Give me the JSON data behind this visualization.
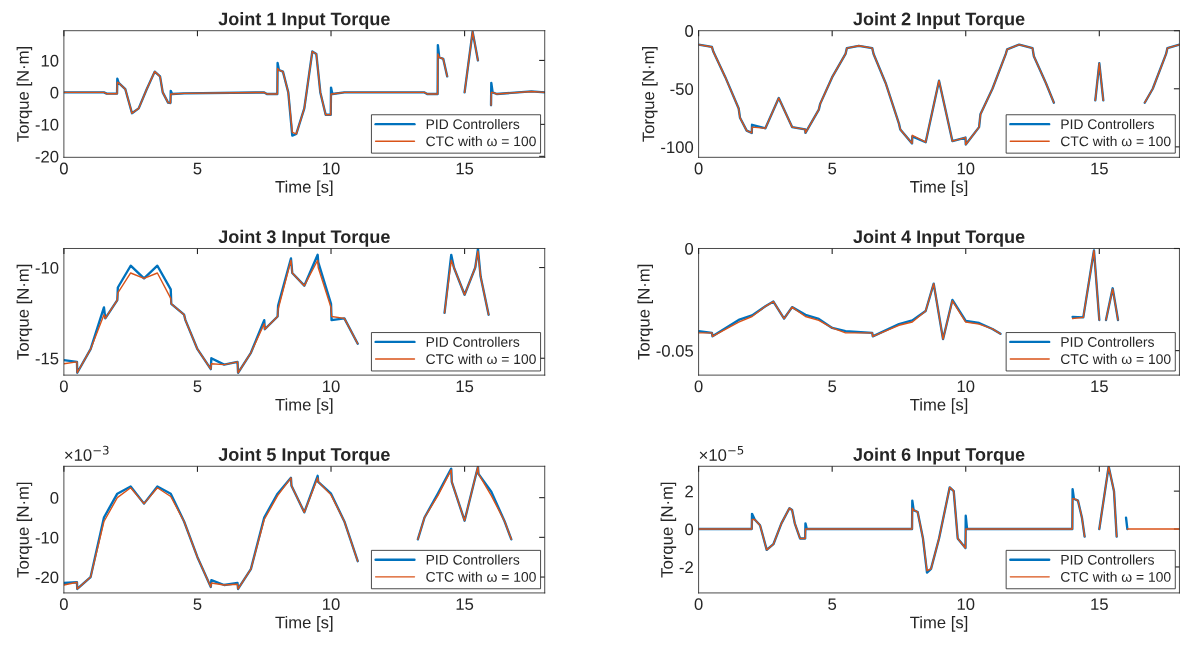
{
  "chart_data": [
    {
      "type": "line",
      "title": "Joint 1 Input Torque",
      "xlabel": "Time [s]",
      "ylabel": "Torque [N·m]",
      "xlim": [
        0,
        18
      ],
      "xticks": [
        0,
        5,
        10,
        15
      ],
      "ylim": [
        -20.3,
        19.3
      ],
      "yticks": [
        -20,
        -10,
        0,
        10
      ],
      "legend": "bottom right",
      "x": [
        0,
        1.5,
        1.6,
        1.99,
        2.0,
        2.05,
        2.3,
        2.55,
        2.8,
        3.1,
        3.4,
        3.6,
        3.7,
        3.9,
        3.99,
        4.0,
        4.05,
        4.5,
        7.5,
        7.6,
        7.99,
        8.0,
        8.05,
        8.2,
        8.4,
        8.55,
        8.7,
        9.0,
        9.3,
        9.45,
        9.6,
        9.8,
        9.99,
        10.0,
        10.05,
        10.5,
        13.5,
        13.6,
        13.99,
        14.0,
        14.05,
        14.2,
        14.35,
        14.5,
        14.6,
        14.75,
        15.0,
        15.3,
        15.5,
        15.65,
        15.85,
        15.99,
        16.0,
        16.05,
        16.2,
        17.5,
        18
      ],
      "series": [
        {
          "name": "PID Controllers",
          "color": "#0072bd",
          "values": [
            0,
            0,
            -0.4,
            -0.4,
            4.3,
            3.0,
            1,
            -6.5,
            -5,
            1,
            6.5,
            5,
            0,
            -3.2,
            -3.3,
            0.5,
            -0.5,
            -0.3,
            0,
            -0.5,
            -0.5,
            9.2,
            7,
            6.5,
            0,
            -13.5,
            -13,
            -5,
            12.8,
            12,
            0,
            -7,
            -7,
            1.5,
            -0.5,
            0,
            0,
            -0.5,
            -0.5,
            14.8,
            11,
            10.5,
            5,
            null,
            null,
            null,
            0,
            19,
            10,
            null,
            null,
            -4,
            3.0,
            0,
            -0.5,
            0.3,
            0
          ]
        },
        {
          "name": "CTC with ω = 100",
          "color": "#d95319",
          "values": [
            0,
            0,
            -0.4,
            -0.4,
            3.2,
            3.0,
            1,
            -6.5,
            -5,
            1,
            6.5,
            5,
            0,
            -3.2,
            -3.3,
            -0.5,
            -0.5,
            -0.3,
            0,
            -0.5,
            -0.5,
            7.5,
            7,
            6.5,
            0,
            -12.5,
            -13,
            -5,
            12.8,
            12,
            0,
            -7,
            -7,
            -0.5,
            -0.5,
            0,
            0,
            -0.5,
            -0.5,
            12,
            11,
            10.5,
            5,
            null,
            null,
            null,
            0,
            19,
            10,
            null,
            null,
            -4,
            0,
            0,
            -0.5,
            0.3,
            0
          ]
        }
      ]
    },
    {
      "type": "line",
      "title": "Joint 2 Input Torque",
      "xlabel": "Time [s]",
      "ylabel": "Torque [N·m]",
      "xlim": [
        0,
        18
      ],
      "xticks": [
        0,
        5,
        10,
        15
      ],
      "ylim": [
        -109,
        0
      ],
      "yticks": [
        -100,
        -50,
        0
      ],
      "legend": "bottom right",
      "x": [
        0,
        0.5,
        0.55,
        1.0,
        1.5,
        1.55,
        1.8,
        1.99,
        2.0,
        2.5,
        3.0,
        3.5,
        3.99,
        4.0,
        4.5,
        4.55,
        5.0,
        5.5,
        5.55,
        6.0,
        6.5,
        6.55,
        7.0,
        7.5,
        7.55,
        7.99,
        8.0,
        8.5,
        9.0,
        9.5,
        9.99,
        10.0,
        10.5,
        10.55,
        11.0,
        11.5,
        11.55,
        12.0,
        12.5,
        12.55,
        13.0,
        13.3,
        14.0,
        14.2,
        14.5,
        14.85,
        15.0,
        15.15,
        15.5,
        15.8,
        16.0,
        16.7,
        17.0,
        17.5,
        17.55,
        18
      ],
      "series": [
        {
          "name": "PID Controllers",
          "color": "#0072bd",
          "values": [
            -12,
            -14,
            -18,
            -40,
            -67,
            -75,
            -86,
            -88,
            -81,
            -84,
            -58,
            -83,
            -85,
            -88,
            -68,
            -63,
            -40,
            -20,
            -15,
            -13,
            -15,
            -20,
            -45,
            -80,
            -85,
            -97,
            -91,
            -96,
            -43,
            -95,
            -92,
            -98,
            -83,
            -72,
            -50,
            -20,
            -16,
            -12,
            -15,
            -22,
            -45,
            -62,
            null,
            null,
            null,
            -60,
            -28,
            -60,
            null,
            null,
            null,
            -62,
            -50,
            -20,
            -15,
            -12
          ]
        },
        {
          "name": "CTC with ω = 100",
          "color": "#d95319",
          "values": [
            -12,
            -14,
            -18,
            -40,
            -67,
            -75,
            -86,
            -88,
            -83,
            -84,
            -58,
            -83,
            -85,
            -88,
            -68,
            -63,
            -40,
            -20,
            -15,
            -13,
            -15,
            -20,
            -45,
            -80,
            -85,
            -97,
            -90,
            -96,
            -43,
            -95,
            -92,
            -98,
            -83,
            -72,
            -50,
            -20,
            -16,
            -12,
            -15,
            -22,
            -45,
            -62,
            null,
            null,
            null,
            -60,
            -28,
            -60,
            null,
            null,
            null,
            -62,
            -50,
            -20,
            -15,
            -12
          ]
        }
      ]
    },
    {
      "type": "line",
      "title": "Joint 3 Input Torque",
      "xlabel": "Time [s]",
      "ylabel": "Torque [N·m]",
      "xlim": [
        0,
        18
      ],
      "xticks": [
        0,
        5,
        10,
        15
      ],
      "ylim": [
        -15.93,
        -8.95
      ],
      "yticks": [
        -15,
        -10
      ],
      "legend": "bottom right",
      "x": [
        0,
        0.49,
        0.5,
        1.0,
        1.5,
        1.55,
        2.0,
        2.02,
        2.5,
        3.0,
        3.5,
        4.0,
        4.02,
        4.5,
        4.55,
        5.0,
        5.5,
        5.52,
        6.0,
        6.5,
        6.52,
        7.0,
        7.5,
        7.52,
        8.0,
        8.02,
        8.5,
        8.55,
        9.0,
        9.5,
        9.52,
        10.0,
        10.02,
        10.5,
        11.0,
        11.5,
        11.52,
        12.0,
        12.5,
        12.52,
        13.0,
        13.5,
        14.25,
        14.5,
        14.6,
        15.0,
        15.4,
        15.5,
        15.6,
        15.9
      ],
      "series": [
        {
          "name": "PID Controllers",
          "color": "#0072bd",
          "values": [
            -15.1,
            -15.2,
            -15.8,
            -14.5,
            -12.2,
            -12.8,
            -11.8,
            -11.1,
            -9.9,
            -10.6,
            -9.9,
            -11.2,
            -12.0,
            -12.6,
            -12.9,
            -14.5,
            -15.6,
            -15.0,
            -15.35,
            -15.2,
            -15.8,
            -14.7,
            -12.9,
            -13.4,
            -12.7,
            -12.1,
            -9.5,
            -10.3,
            -11.0,
            -9.3,
            -9.7,
            -12.0,
            -12.9,
            -12.8,
            -14.2,
            null,
            null,
            null,
            null,
            null,
            null,
            null,
            -12.5,
            -9.3,
            -10.0,
            -11.5,
            -10.0,
            -8.97,
            -10.5,
            -12.6
          ]
        },
        {
          "name": "CTC with ω = 100",
          "color": "#d95319",
          "values": [
            -15.3,
            -15.2,
            -15.8,
            -14.5,
            -12.6,
            -12.8,
            -11.8,
            -11.4,
            -10.3,
            -10.6,
            -10.3,
            -11.7,
            -12.0,
            -12.6,
            -12.9,
            -14.5,
            -15.6,
            -15.3,
            -15.35,
            -15.2,
            -15.8,
            -14.7,
            -13.1,
            -13.4,
            -12.7,
            -12.3,
            -9.6,
            -10.3,
            -11.0,
            -9.6,
            -10.0,
            -12.2,
            -12.7,
            -12.8,
            -14.2,
            null,
            null,
            null,
            null,
            null,
            null,
            null,
            -12.5,
            -9.6,
            -10.0,
            -11.5,
            -10.0,
            -9.1,
            -10.5,
            -12.6
          ]
        }
      ]
    },
    {
      "type": "line",
      "title": "Joint 4 Input Torque",
      "xlabel": "Time [s]",
      "ylabel": "Torque [N·m]",
      "xlim": [
        0,
        18
      ],
      "xticks": [
        0,
        5,
        10,
        15
      ],
      "ylim": [
        -0.062,
        0
      ],
      "yticks": [
        -0.05,
        0
      ],
      "legend": "bottom right",
      "x": [
        0,
        0.5,
        0.52,
        1.5,
        2.0,
        2.5,
        2.8,
        3.2,
        3.5,
        4.0,
        4.5,
        5.0,
        5.5,
        6.5,
        6.52,
        7.5,
        8.0,
        8.5,
        8.8,
        9.15,
        9.5,
        10.0,
        10.5,
        11.0,
        11.3,
        12.5,
        13.9,
        14.0,
        14.4,
        14.8,
        15.0,
        15.1,
        15.25,
        15.5,
        15.7
      ],
      "series": [
        {
          "name": "PID Controllers",
          "color": "#0072bd",
          "values": [
            -0.0405,
            -0.0413,
            -0.043,
            -0.035,
            -0.0328,
            -0.0283,
            -0.026,
            -0.0343,
            -0.0287,
            -0.0325,
            -0.0345,
            -0.0389,
            -0.0405,
            -0.0413,
            -0.043,
            -0.037,
            -0.0352,
            -0.0306,
            -0.0172,
            -0.0444,
            -0.0252,
            -0.0355,
            -0.0365,
            -0.0394,
            -0.0418,
            null,
            null,
            -0.0335,
            -0.0337,
            -0.0009,
            -0.035,
            null,
            -0.035,
            -0.0195,
            -0.035
          ]
        },
        {
          "name": "CTC with ω = 100",
          "color": "#d95319",
          "values": [
            -0.0413,
            -0.0413,
            -0.043,
            -0.036,
            -0.0333,
            -0.0283,
            -0.026,
            -0.0343,
            -0.0287,
            -0.0333,
            -0.0352,
            -0.0389,
            -0.0413,
            -0.0413,
            -0.043,
            -0.0376,
            -0.036,
            -0.0306,
            -0.0172,
            -0.0444,
            -0.0256,
            -0.036,
            -0.037,
            -0.0394,
            -0.0418,
            null,
            null,
            -0.0343,
            -0.0337,
            -0.0009,
            -0.035,
            null,
            -0.035,
            -0.0198,
            -0.035
          ]
        }
      ]
    },
    {
      "type": "line",
      "title": "Joint 5 Input Torque",
      "xlabel": "Time [s]",
      "ylabel": "Torque [N·m]",
      "xlim": [
        0,
        18
      ],
      "xticks": [
        0,
        5,
        10,
        15
      ],
      "ylim": [
        -24,
        7.9
      ],
      "yticks": [
        -20,
        -10,
        0
      ],
      "legend": "bottom right",
      "annotations": [
        "×10$^{−3}$"
      ],
      "x": [
        0,
        0.49,
        0.5,
        1.0,
        1.5,
        2.0,
        2.5,
        3.0,
        3.5,
        4.0,
        4.5,
        5.0,
        5.5,
        5.52,
        6.0,
        6.5,
        6.52,
        7.0,
        7.5,
        8.0,
        8.5,
        8.52,
        9.0,
        9.5,
        9.52,
        10.0,
        10.5,
        11.0,
        11.5,
        11.52,
        12.0,
        12.5,
        12.52,
        13.25,
        13.5,
        14.0,
        14.5,
        14.52,
        15.0,
        15.5,
        15.52,
        16.0,
        16.5,
        16.75
      ],
      "series": [
        {
          "name": "PID Controllers",
          "color": "#0072bd",
          "values": [
            -21.5,
            -21.3,
            -23,
            -20,
            -5,
            1,
            2.8,
            -1.5,
            2.8,
            1,
            -6,
            -15,
            -22.5,
            -20.8,
            -22,
            -21.5,
            -23,
            -18,
            -5,
            1,
            5,
            3,
            -3.7,
            5.5,
            4,
            1,
            -6,
            -16,
            null,
            null,
            null,
            null,
            null,
            -10.5,
            -5,
            1,
            7.3,
            4,
            -5.8,
            7.8,
            6,
            1.5,
            -6,
            -10.5
          ]
        },
        {
          "name": "CTC with ω = 100",
          "color": "#d95319",
          "values": [
            -22,
            -21.3,
            -23,
            -20,
            -6,
            0,
            2.5,
            -1.5,
            2.5,
            0.3,
            -6,
            -15,
            -22.5,
            -21.5,
            -22,
            -21.8,
            -23,
            -18,
            -5.5,
            0.5,
            5,
            3,
            -3.7,
            5,
            4,
            0.7,
            -6,
            -16,
            null,
            null,
            null,
            null,
            null,
            -10.5,
            -5,
            0.5,
            7,
            4,
            -5.8,
            7.8,
            6,
            0.5,
            -6,
            -10.5
          ]
        }
      ]
    },
    {
      "type": "line",
      "title": "Joint 6 Input Torque",
      "xlabel": "Time [s]",
      "ylabel": "Torque [N·m]",
      "xlim": [
        0,
        18
      ],
      "xticks": [
        0,
        5,
        10,
        15
      ],
      "ylim": [
        -3.37,
        3.31
      ],
      "yticks": [
        -2,
        0,
        2
      ],
      "legend": "bottom right",
      "annotations": [
        "×10$^{−5}$"
      ],
      "x": [
        0,
        1.99,
        2.0,
        2.1,
        2.3,
        2.55,
        2.8,
        3.1,
        3.4,
        3.5,
        3.6,
        3.8,
        3.99,
        4.0,
        4.05,
        7.99,
        8.0,
        8.05,
        8.2,
        8.4,
        8.55,
        8.7,
        9.0,
        9.4,
        9.55,
        9.7,
        9.99,
        10.0,
        10.05,
        13.99,
        14.0,
        14.05,
        14.2,
        14.35,
        14.45,
        14.6,
        14.75,
        15.0,
        15.35,
        15.55,
        15.65,
        15.9,
        15.99,
        16.0,
        16.05,
        18
      ],
      "series": [
        {
          "name": "PID Controllers",
          "color": "#0072bd",
          "values": [
            0,
            0,
            0.8,
            0.5,
            0.2,
            -1.1,
            -0.8,
            0.3,
            1.1,
            1.0,
            0.3,
            -0.5,
            -0.5,
            0.3,
            0,
            0,
            1.5,
            1.0,
            0.9,
            -0.5,
            -2.3,
            -2.1,
            -0.5,
            2.2,
            2.0,
            -0.5,
            -1.0,
            0.7,
            0,
            0,
            2.1,
            1.6,
            1.5,
            0.6,
            -0.4,
            null,
            null,
            0,
            3.3,
            2.0,
            -0.4,
            null,
            null,
            0.6,
            0,
            null
          ]
        },
        {
          "name": "CTC with ω = 100",
          "color": "#d95319",
          "values": [
            0,
            0,
            0.5,
            0.5,
            0.2,
            -1.1,
            -0.8,
            0.3,
            1.1,
            1.0,
            0.3,
            -0.5,
            -0.5,
            0,
            0,
            0,
            1.1,
            1.0,
            0.9,
            -0.5,
            -2.2,
            -2.1,
            -0.5,
            2.2,
            2.0,
            -0.5,
            -1.0,
            0,
            0,
            0,
            1.6,
            1.6,
            1.5,
            0.6,
            -0.4,
            null,
            null,
            0,
            3.3,
            2.0,
            -0.4,
            null,
            null,
            null,
            0,
            0
          ]
        }
      ]
    }
  ]
}
